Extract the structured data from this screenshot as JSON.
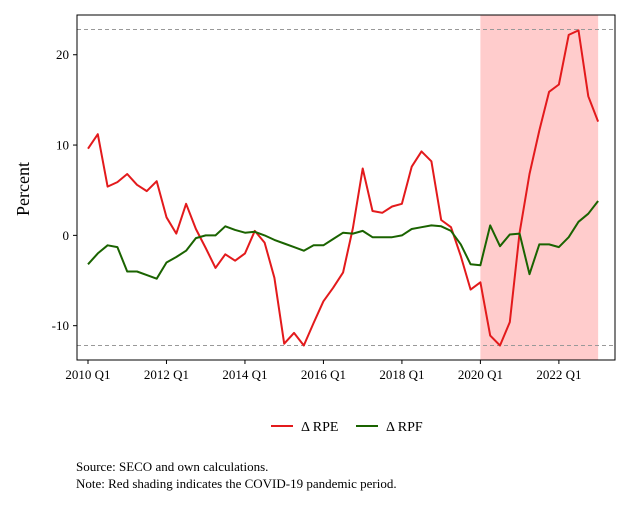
{
  "chart_data": {
    "type": "line",
    "ylabel": "Percent",
    "ylim": [
      -13.8,
      24.4
    ],
    "xlim": [
      2009.72,
      2023.43
    ],
    "x_start": 2010.0,
    "x_step": 0.25,
    "x_ticks": [
      {
        "x": 2010.0,
        "label": "2010 Q1"
      },
      {
        "x": 2012.0,
        "label": "2012 Q1"
      },
      {
        "x": 2014.0,
        "label": "2014 Q1"
      },
      {
        "x": 2016.0,
        "label": "2016 Q1"
      },
      {
        "x": 2018.0,
        "label": "2018 Q1"
      },
      {
        "x": 2020.0,
        "label": "2020 Q1"
      },
      {
        "x": 2022.0,
        "label": "2022 Q1"
      }
    ],
    "y_ticks": [
      {
        "y": 20,
        "label": "20"
      },
      {
        "y": 10,
        "label": "10"
      },
      {
        "y": 0,
        "label": "0"
      },
      {
        "y": -10,
        "label": "-10"
      }
    ],
    "hlines": [
      22.8,
      -12.2
    ],
    "shading": {
      "from": 2020.0,
      "to": 2023.0,
      "color": "#ffcccc"
    },
    "series": [
      {
        "name": "Δ RPE",
        "color": "#e31a1c",
        "values": [
          9.6,
          11.2,
          5.4,
          5.9,
          6.8,
          5.6,
          4.9,
          6.0,
          2.0,
          0.2,
          3.5,
          0.7,
          -1.4,
          -3.6,
          -2.1,
          -2.8,
          -2.0,
          0.5,
          -0.8,
          -4.7,
          -12.0,
          -10.8,
          -12.2,
          -9.7,
          -7.3,
          -5.8,
          -4.1,
          0.8,
          7.4,
          2.7,
          2.5,
          3.2,
          3.5,
          7.6,
          9.3,
          8.2,
          1.7,
          0.9,
          -2.3,
          -6.0,
          -5.2,
          -11.1,
          -12.2,
          -9.6,
          0.3,
          6.8,
          11.6,
          15.9,
          16.7,
          22.2,
          22.7,
          15.4,
          12.6
        ]
      },
      {
        "name": "Δ RPF",
        "color": "#1a6300",
        "values": [
          -3.2,
          -2.0,
          -1.1,
          -1.3,
          -4.0,
          -4.0,
          -4.4,
          -4.8,
          -3.0,
          -2.4,
          -1.7,
          -0.3,
          0.0,
          0.0,
          1.0,
          0.6,
          0.3,
          0.4,
          0.0,
          -0.5,
          -0.9,
          -1.3,
          -1.7,
          -1.1,
          -1.1,
          -0.4,
          0.3,
          0.2,
          0.5,
          -0.2,
          -0.2,
          -0.2,
          0.0,
          0.7,
          0.9,
          1.1,
          1.0,
          0.5,
          -1.0,
          -3.2,
          -3.3,
          1.1,
          -1.2,
          0.1,
          0.2,
          -4.3,
          -1.0,
          -1.0,
          -1.3,
          -0.2,
          1.5,
          2.4,
          3.8
        ]
      }
    ],
    "legend": "bottom"
  },
  "notes": {
    "source": "Source: SECO and own calculations.",
    "note": "Note: Red shading indicates the COVID-19 pandemic period."
  }
}
